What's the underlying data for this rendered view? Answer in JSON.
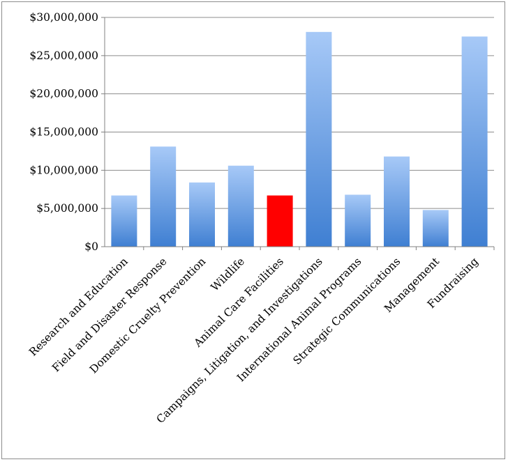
{
  "chart_data": {
    "type": "bar",
    "title": "",
    "xlabel": "",
    "ylabel": "",
    "ylim": [
      0,
      30000000
    ],
    "y_tick_step": 5000000,
    "y_tick_labels": [
      "$0",
      "$5,000,000",
      "$10,000,000",
      "$15,000,000",
      "$20,000,000",
      "$25,000,000",
      "$30,000,000"
    ],
    "grid": "horizontal",
    "legend": "none",
    "categories": [
      "Research and Education",
      "Field and Disaster Response",
      "Domestic Cruelty Prevention",
      "Wildlife",
      "Animal Care Facilities",
      "Campaigns, Litigation, and Investigations",
      "International Animal Programs",
      "Strategic Communications",
      "Management",
      "Fundraising"
    ],
    "values": [
      6700000,
      13100000,
      8400000,
      10600000,
      6700000,
      28100000,
      6800000,
      11800000,
      4800000,
      27500000
    ],
    "highlight_index": 4,
    "colors": {
      "bar_top": "#a7c9f7",
      "bar_bottom": "#3f7fd2",
      "highlight": "#ff0000",
      "grid": "#8c8c8c",
      "axis": "#808080"
    }
  }
}
